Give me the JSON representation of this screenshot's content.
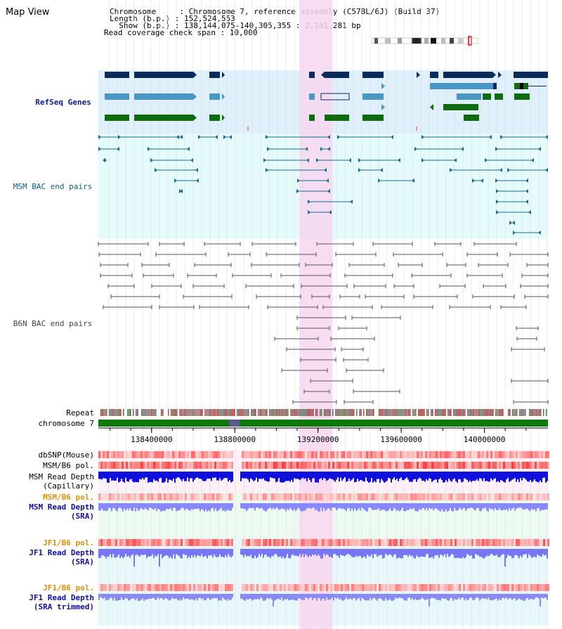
{
  "title": "Map View",
  "info": {
    "chromosome": "Chromosome     : Chromosome 7, reference assembly (C57BL/6J) (Build 37)",
    "length": "Length (b.p.) : 152,524,553",
    "show": "  Show (b.p.) : 138,144,075-140,305,355 : 2,161,281 bp",
    "coverage": "Read coverage check span : 10,000"
  },
  "tracks": {
    "refseq": "RefSeq Genes",
    "msm_bac": "MSM BAC end pairs",
    "b6n_bac": "B6N BAC end pairs",
    "repeat": "Repeat",
    "chromosome": "chromosome 7",
    "dbsnp": "dbSNP(Mouse)",
    "msm_b6_pol": "MSM/B6 pol.",
    "msm_depth_cap_1": "MSM Read Depth",
    "msm_depth_cap_2": "(Capillary)",
    "msm_b6_pol2": "MSM/B6 pol.",
    "msm_depth_sra_1": "MSM Read Depth",
    "msm_depth_sra_2": "(SRA)",
    "jf1_pol": "JF1/B6 pol.",
    "jf1_depth_1": "JF1 Read Depth",
    "jf1_depth_2": "(SRA)",
    "jf1_pol2": "JF1/B6 pol.",
    "jf1_trim_1": "JF1 Read Depth",
    "jf1_trim_2": "(SRA trimmed)"
  },
  "axis": {
    "ticks": [
      "138400000",
      "138800000",
      "139200000",
      "139600000",
      "140000000"
    ],
    "tick_values": [
      138400000,
      138800000,
      139200000,
      139600000,
      140000000
    ],
    "start": 138144075,
    "end": 140305355
  },
  "highlight": {
    "start": 139110000,
    "end": 139270000
  },
  "colors": {
    "refseq_bg": "#dff0fa",
    "msm_bg": "#e5fafa",
    "highlight": "#f7d7f0",
    "refseq_dark": "#0a2c5a",
    "refseq_mid": "#4a96c4",
    "refseq_green": "#0e6b10",
    "msm_line": "#1a6c8c",
    "b6n_line": "#555555",
    "label_orange": "#e09000",
    "label_blue": "#1010a0",
    "label_refseq": "#0a1e8c",
    "label_msm": "#106080"
  }
}
